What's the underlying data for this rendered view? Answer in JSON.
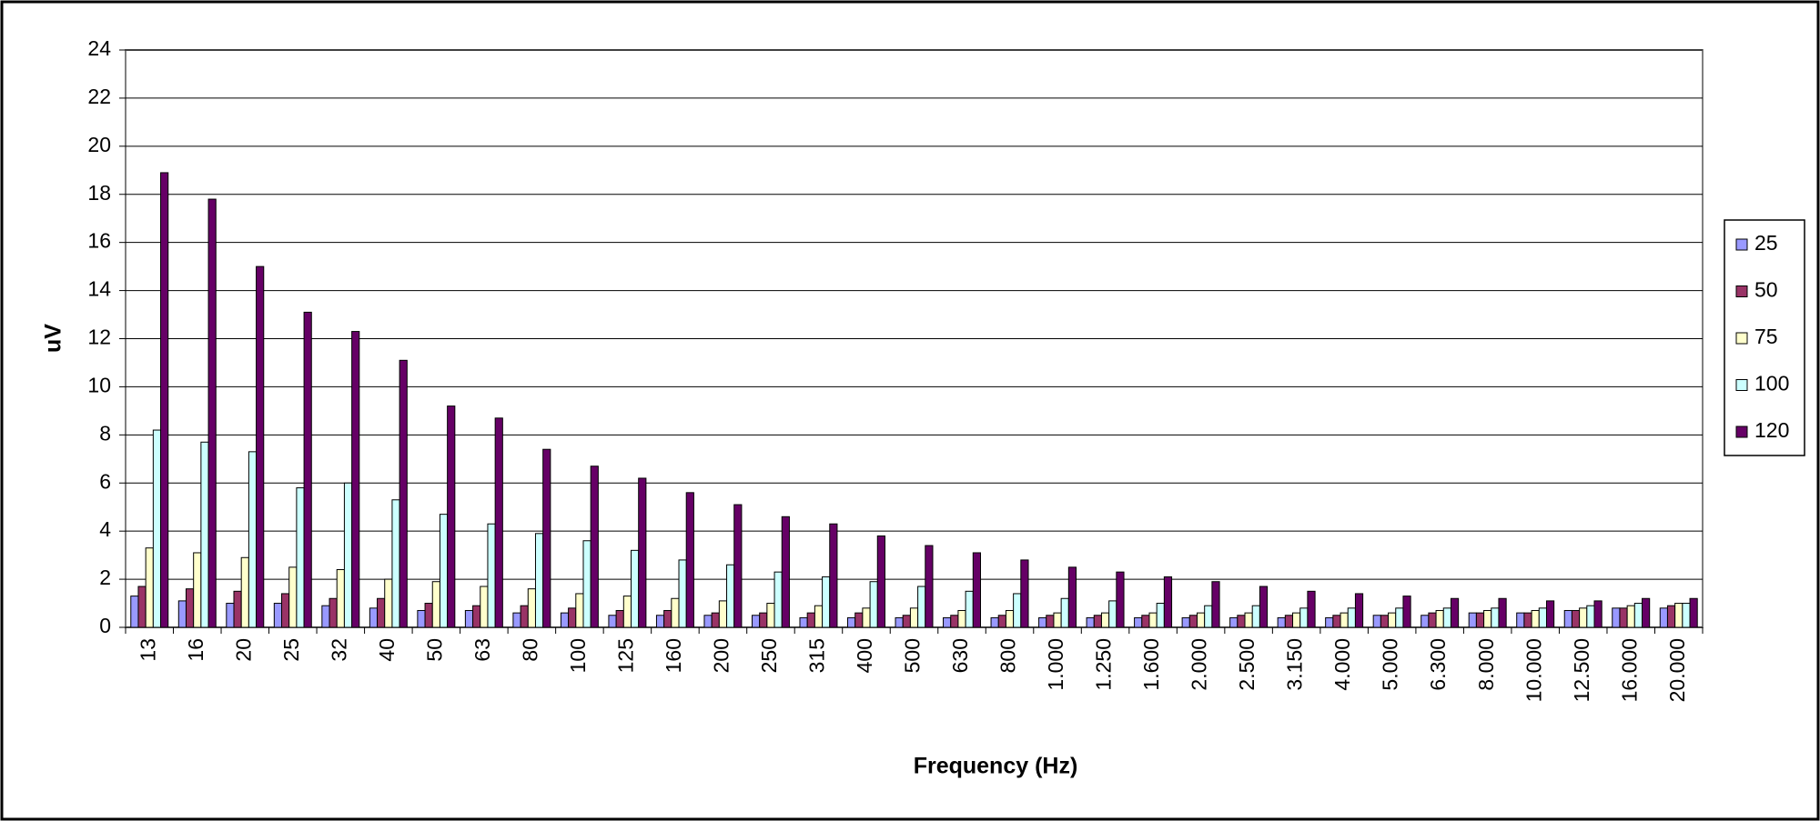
{
  "chart_data": {
    "type": "bar",
    "x_label": "Frequency (Hz)",
    "y_label": "uV",
    "categories": [
      "13",
      "16",
      "20",
      "25",
      "32",
      "40",
      "50",
      "63",
      "80",
      "100",
      "125",
      "160",
      "200",
      "250",
      "315",
      "400",
      "500",
      "630",
      "800",
      "1.000",
      "1.250",
      "1.600",
      "2.000",
      "2.500",
      "3.150",
      "4.000",
      "5.000",
      "6.300",
      "8.000",
      "10.000",
      "12.500",
      "16.000",
      "20.000"
    ],
    "series": [
      {
        "name": "25",
        "color": "#9999ff",
        "values": [
          1.3,
          1.1,
          1.0,
          1.0,
          0.9,
          0.8,
          0.7,
          0.7,
          0.6,
          0.6,
          0.5,
          0.5,
          0.5,
          0.5,
          0.4,
          0.4,
          0.4,
          0.4,
          0.4,
          0.4,
          0.4,
          0.4,
          0.4,
          0.4,
          0.4,
          0.4,
          0.5,
          0.5,
          0.6,
          0.6,
          0.7,
          0.8,
          0.8
        ]
      },
      {
        "name": "50",
        "color": "#993366",
        "values": [
          1.7,
          1.6,
          1.5,
          1.4,
          1.2,
          1.2,
          1.0,
          0.9,
          0.9,
          0.8,
          0.7,
          0.7,
          0.6,
          0.6,
          0.6,
          0.6,
          0.5,
          0.5,
          0.5,
          0.5,
          0.5,
          0.5,
          0.5,
          0.5,
          0.5,
          0.5,
          0.5,
          0.6,
          0.6,
          0.6,
          0.7,
          0.8,
          0.9
        ]
      },
      {
        "name": "75",
        "color": "#ffffcc",
        "values": [
          3.3,
          3.1,
          2.9,
          2.5,
          2.4,
          2.0,
          1.9,
          1.7,
          1.6,
          1.4,
          1.3,
          1.2,
          1.1,
          1.0,
          0.9,
          0.8,
          0.8,
          0.7,
          0.7,
          0.6,
          0.6,
          0.6,
          0.6,
          0.6,
          0.6,
          0.6,
          0.6,
          0.7,
          0.7,
          0.7,
          0.8,
          0.9,
          1.0
        ]
      },
      {
        "name": "100",
        "color": "#ccffff",
        "values": [
          8.2,
          7.7,
          7.3,
          5.8,
          6.0,
          5.3,
          4.7,
          4.3,
          3.9,
          3.6,
          3.2,
          2.8,
          2.6,
          2.3,
          2.1,
          1.9,
          1.7,
          1.5,
          1.4,
          1.2,
          1.1,
          1.0,
          0.9,
          0.9,
          0.8,
          0.8,
          0.8,
          0.8,
          0.8,
          0.8,
          0.9,
          1.0,
          1.0
        ]
      },
      {
        "name": "120",
        "color": "#660066",
        "values": [
          18.9,
          17.8,
          15.0,
          13.1,
          12.3,
          11.1,
          9.2,
          8.7,
          7.4,
          6.7,
          6.2,
          5.6,
          5.1,
          4.6,
          4.3,
          3.8,
          3.4,
          3.1,
          2.8,
          2.5,
          2.3,
          2.1,
          1.9,
          1.7,
          1.5,
          1.4,
          1.3,
          1.2,
          1.2,
          1.1,
          1.1,
          1.2,
          1.2
        ]
      }
    ],
    "ylim": [
      0,
      24
    ],
    "yticks": [
      0,
      2,
      4,
      6,
      8,
      10,
      12,
      14,
      16,
      18,
      20,
      22,
      24
    ],
    "grid": true,
    "legend": "right"
  }
}
